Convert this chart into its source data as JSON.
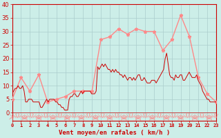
{
  "bg_color": "#cceee8",
  "grid_color": "#aacccc",
  "line_color_mean": "#ff8888",
  "line_color_gust": "#cc0000",
  "xlabel": "Vent moyen/en rafales ( km/h )",
  "xlabel_color": "#cc0000",
  "tick_color": "#cc0000",
  "ylim": [
    -3,
    40
  ],
  "xlim": [
    0,
    23
  ],
  "yticks": [
    0,
    5,
    10,
    15,
    20,
    25,
    30,
    35,
    40
  ],
  "xticks": [
    0,
    1,
    2,
    3,
    4,
    5,
    6,
    7,
    8,
    9,
    10,
    11,
    12,
    13,
    14,
    15,
    16,
    17,
    18,
    19,
    20,
    21,
    22,
    23
  ],
  "mean_x": [
    0,
    1,
    2,
    3,
    4,
    5,
    6,
    7,
    8,
    9,
    10,
    11,
    12,
    13,
    14,
    15,
    16,
    17,
    18,
    19,
    20,
    21,
    22,
    23
  ],
  "mean_y": [
    5,
    13,
    8,
    14,
    4,
    5,
    6,
    8,
    8,
    8,
    27,
    28,
    31,
    29,
    31,
    30,
    30,
    23,
    27,
    36,
    28,
    13,
    7,
    4
  ],
  "gust_y": [
    7,
    8,
    9,
    9,
    10,
    9,
    9,
    10,
    8,
    4,
    4,
    5,
    5,
    5,
    4,
    4,
    4,
    4,
    4,
    2,
    2,
    3,
    4,
    5,
    4,
    5,
    5,
    5,
    5,
    4,
    4,
    3,
    3,
    2,
    2,
    1,
    1,
    1,
    5,
    6,
    6,
    7,
    7,
    6,
    6,
    7,
    8,
    7,
    8,
    8,
    8,
    8,
    8,
    7,
    7,
    7,
    8,
    17,
    16,
    17,
    18,
    17,
    18,
    17,
    16,
    16,
    15,
    16,
    15,
    16,
    15,
    15,
    14,
    14,
    13,
    14,
    13,
    12,
    13,
    13,
    12,
    13,
    12,
    13,
    14,
    14,
    12,
    12,
    13,
    12,
    11,
    11,
    11,
    12,
    12,
    12,
    11,
    12,
    13,
    14,
    15,
    16,
    20,
    22,
    18,
    14,
    13,
    13,
    12,
    14,
    13,
    13,
    14,
    14,
    12,
    12,
    13,
    14,
    15,
    14,
    13,
    13,
    13,
    14,
    12,
    11,
    10,
    8,
    7,
    6,
    5,
    5,
    4,
    4,
    4,
    4,
    4
  ],
  "dir_x": [
    0,
    0.2,
    0.4,
    0.6,
    0.8,
    1.0,
    1.2,
    1.4,
    1.6,
    1.8,
    2.0,
    2.2,
    2.4,
    2.6,
    2.8,
    3.0,
    3.2,
    3.4,
    3.6,
    3.8,
    4.0,
    4.2,
    4.4,
    4.6,
    4.8,
    5.0,
    5.2,
    5.4,
    5.6,
    5.8,
    6.0,
    6.2,
    6.4,
    6.6,
    6.8,
    7.0,
    7.2,
    7.4,
    7.6,
    7.8,
    8.0,
    8.2,
    8.4,
    8.6,
    8.8,
    9.0,
    9.2,
    9.4,
    9.6,
    9.8,
    10.0,
    10.2,
    10.4,
    10.6,
    10.8,
    11.0,
    11.2,
    11.4,
    11.6,
    11.8,
    12.0,
    12.2,
    12.4,
    12.6,
    12.8,
    13.0,
    13.2,
    13.4,
    13.6,
    13.8,
    14.0,
    14.2,
    14.4,
    14.6,
    14.8,
    15.0,
    15.2,
    15.4,
    15.6,
    15.8,
    16.0,
    16.2,
    16.4,
    16.6,
    16.8,
    17.0,
    17.2,
    17.4,
    17.6,
    17.8,
    18.0,
    18.2,
    18.4,
    18.6,
    18.8,
    19.0,
    19.2,
    19.4,
    19.6,
    19.8,
    20.0,
    20.2,
    20.4,
    20.6,
    20.8,
    21.0,
    21.2,
    21.4,
    21.6,
    21.8,
    22.0,
    22.2,
    22.4,
    22.6,
    22.8,
    23.0
  ],
  "dir_angles": [
    45,
    90,
    135,
    180,
    225,
    270,
    315,
    0,
    45,
    90,
    135,
    180,
    225,
    270,
    315,
    0,
    45,
    90,
    135,
    180,
    225,
    270,
    315,
    0,
    45,
    90,
    135,
    180,
    225,
    270,
    315,
    0,
    45,
    90,
    135,
    180,
    225,
    270,
    315,
    0,
    45,
    90,
    135,
    180,
    225,
    270,
    315,
    0,
    45,
    90,
    135,
    180,
    225,
    270,
    315,
    0,
    45,
    90,
    135,
    180,
    225,
    270,
    315,
    0,
    45,
    90,
    135,
    180,
    225,
    270,
    315,
    0,
    45,
    90,
    135,
    180,
    225,
    270,
    315,
    0,
    45,
    90,
    135,
    180,
    225,
    270,
    315,
    0,
    45,
    90,
    135,
    180,
    225,
    270,
    315,
    0,
    45,
    90,
    135,
    180,
    225,
    270,
    315,
    0,
    45,
    90,
    135,
    180,
    225,
    270,
    315,
    0,
    45,
    90,
    135,
    180,
    225,
    270
  ]
}
